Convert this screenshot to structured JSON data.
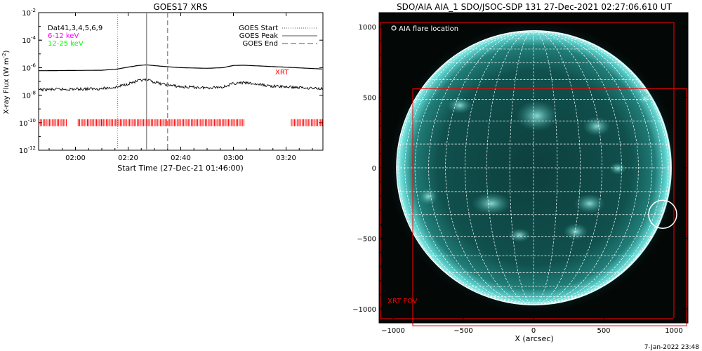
{
  "footer_date": "7-Jan-2022 23:48",
  "colors": {
    "xrt": "#ff0000",
    "ch1": "#ff00ff",
    "ch2": "#00ff00",
    "axis": "#000000",
    "grid": "#ffffff",
    "sun_edge": "#5fd3cf",
    "sun_core": "#0a3a38"
  },
  "chart_data": [
    {
      "type": "line",
      "title": "GOES17 XRS",
      "xlabel": "Start Time (27-Dec-21 01:46:00)",
      "ylabel": "X-ray Flux (W m^-2)",
      "ylabel_main": "X-ray Flux (W m",
      "ylabel_exp": "-2",
      "ylabel_close": ")",
      "scale_y": "log",
      "xlim": [
        "01:46",
        "03:34"
      ],
      "ylim": [
        1e-12,
        0.01
      ],
      "xticks": [
        "02:00",
        "02:20",
        "02:40",
        "03:00",
        "03:20"
      ],
      "yticks": [
        {
          "base": "10",
          "exp": "-2",
          "value": 0.01
        },
        {
          "base": "10",
          "exp": "-4",
          "value": 0.0001
        },
        {
          "base": "10",
          "exp": "-6",
          "value": 1e-06
        },
        {
          "base": "10",
          "exp": "-8",
          "value": 1e-08
        },
        {
          "base": "10",
          "exp": "-10",
          "value": 1e-10
        },
        {
          "base": "10",
          "exp": "-12",
          "value": 1e-12
        }
      ],
      "legend_placement": "top-right",
      "legend": [
        {
          "label": "GOES Start",
          "style": "dotted"
        },
        {
          "label": "GOES Peak",
          "style": "solid"
        },
        {
          "label": "GOES End",
          "style": "dashed"
        }
      ],
      "labels_top_left": [
        {
          "text": "Dat41,3,4,5,6,9",
          "color": "#000000"
        },
        {
          "text": "6-12 keV",
          "color": "#ff00ff"
        },
        {
          "text": "12-25 keV",
          "color": "#00ff00"
        }
      ],
      "xrt_label": "XRT",
      "markers": {
        "start": "02:16",
        "peak": "02:27",
        "end": "02:35"
      },
      "series": [
        {
          "channel": "long",
          "x": [
            "01:46",
            "02:10",
            "02:16",
            "02:20",
            "02:24",
            "02:27",
            "02:32",
            "02:40",
            "02:50",
            "02:56",
            "03:00",
            "03:04",
            "03:15",
            "03:34"
          ],
          "y": [
            6e-07,
            6.5e-07,
            8e-07,
            1.1e-06,
            1.45e-06,
            1.6e-06,
            1.3e-06,
            1e-06,
            9e-07,
            1e-06,
            1.45e-06,
            1.5e-06,
            1.2e-06,
            8e-07
          ]
        },
        {
          "channel": "short",
          "x": [
            "01:46",
            "02:10",
            "02:16",
            "02:20",
            "02:24",
            "02:27",
            "02:32",
            "02:40",
            "02:50",
            "02:56",
            "03:00",
            "03:04",
            "03:15",
            "03:34"
          ],
          "y": [
            2.5e-08,
            3e-08,
            4e-08,
            7e-08,
            1.1e-07,
            1.3e-07,
            7e-08,
            4e-08,
            3.5e-08,
            4e-08,
            7e-08,
            8e-08,
            4.5e-08,
            3e-08
          ]
        }
      ],
      "xrt_coverage": [
        {
          "from": "01:46",
          "to": "01:57"
        },
        {
          "from": "02:01",
          "to": "02:10"
        },
        {
          "from": "02:10",
          "to": "03:04"
        },
        {
          "from": "03:22",
          "to": "03:34"
        }
      ]
    },
    {
      "type": "scatter",
      "title": "SDO/AIA AIA_1 SDO/JSOC-SDP 131 27-Dec-2021 02:27:06.610 UT",
      "xlabel": "X (arcsec)",
      "ylabel": "",
      "xlim": [
        -1100,
        1100
      ],
      "ylim": [
        -1100,
        1100
      ],
      "xticks": [
        "-1000",
        "-500",
        "0",
        "500",
        "1000"
      ],
      "yticks": [
        "1000",
        "500",
        "0",
        "-500",
        "-1000"
      ],
      "solar_radius_arcsec": 976,
      "grid": "heliographic 10-degree",
      "legend_text": "AIA flare location",
      "flare_location": {
        "x": 920,
        "y": -330,
        "radius": 100
      },
      "xrt_fov_label": "XRT FOV",
      "xrt_fov_boxes": [
        {
          "x1": -1090,
          "x2": 1000,
          "y1": -1070,
          "y2": 1030
        },
        {
          "x1": -860,
          "x2": 1090,
          "y1": -1120,
          "y2": 560
        }
      ]
    }
  ]
}
